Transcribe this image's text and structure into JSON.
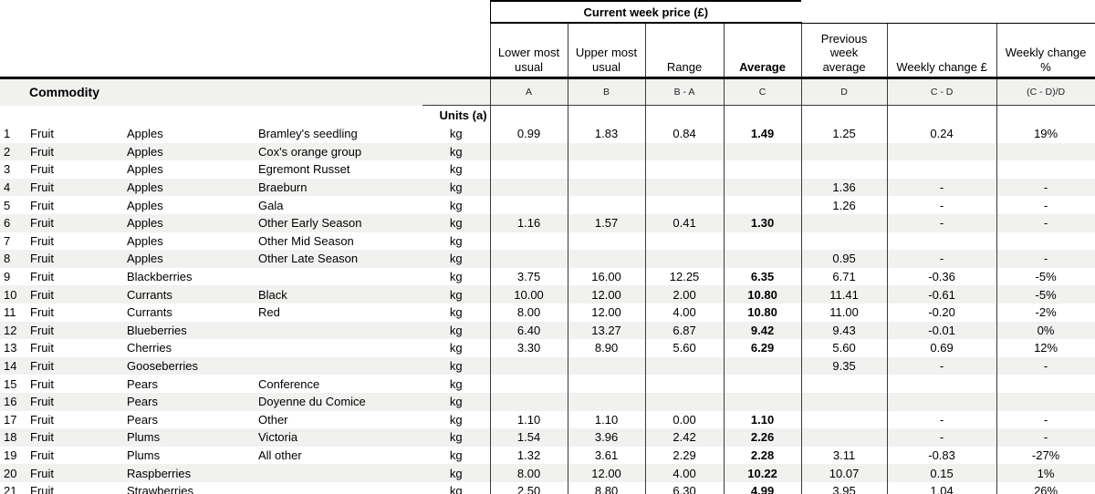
{
  "header": {
    "group_title": "Current week price (£)",
    "columns": [
      "Lower most\nusual",
      "Upper most\nusual",
      "Range",
      "Average",
      "Previous\nweek\naverage",
      "Weekly change £",
      "Weekly change\n%"
    ],
    "formulas": [
      "A",
      "B",
      "B - A",
      "C",
      "D",
      "C - D",
      "(C - D)/D"
    ],
    "commodity_label": "Commodity",
    "units_label": "Units (a)"
  },
  "table": {
    "rows": [
      {
        "num": 1,
        "category": "Fruit",
        "commodity": "Apples",
        "variety": "Bramley's seedling",
        "unit": "kg",
        "values": [
          "0.99",
          "1.83",
          "0.84",
          "1.49",
          "1.25",
          "0.24",
          "19%"
        ]
      },
      {
        "num": 2,
        "category": "Fruit",
        "commodity": "Apples",
        "variety": "Cox's orange group",
        "unit": "kg",
        "values": [
          "",
          "",
          "",
          "",
          "",
          "",
          ""
        ]
      },
      {
        "num": 3,
        "category": "Fruit",
        "commodity": "Apples",
        "variety": "Egremont Russet",
        "unit": "kg",
        "values": [
          "",
          "",
          "",
          "",
          "",
          "",
          ""
        ]
      },
      {
        "num": 4,
        "category": "Fruit",
        "commodity": "Apples",
        "variety": "Braeburn",
        "unit": "kg",
        "values": [
          "",
          "",
          "",
          "",
          "1.36",
          "-",
          "-"
        ]
      },
      {
        "num": 5,
        "category": "Fruit",
        "commodity": "Apples",
        "variety": "Gala",
        "unit": "kg",
        "values": [
          "",
          "",
          "",
          "",
          "1.26",
          "-",
          "-"
        ]
      },
      {
        "num": 6,
        "category": "Fruit",
        "commodity": "Apples",
        "variety": "Other Early Season",
        "unit": "kg",
        "values": [
          "1.16",
          "1.57",
          "0.41",
          "1.30",
          "",
          "-",
          "-"
        ]
      },
      {
        "num": 7,
        "category": "Fruit",
        "commodity": "Apples",
        "variety": "Other Mid Season",
        "unit": "kg",
        "values": [
          "",
          "",
          "",
          "",
          "",
          "",
          ""
        ]
      },
      {
        "num": 8,
        "category": "Fruit",
        "commodity": "Apples",
        "variety": "Other Late Season",
        "unit": "kg",
        "values": [
          "",
          "",
          "",
          "",
          "0.95",
          "-",
          "-"
        ]
      },
      {
        "num": 9,
        "category": "Fruit",
        "commodity": "Blackberries",
        "variety": "",
        "unit": "kg",
        "values": [
          "3.75",
          "16.00",
          "12.25",
          "6.35",
          "6.71",
          "-0.36",
          "-5%"
        ]
      },
      {
        "num": 10,
        "category": "Fruit",
        "commodity": "Currants",
        "variety": "Black",
        "unit": "kg",
        "values": [
          "10.00",
          "12.00",
          "2.00",
          "10.80",
          "11.41",
          "-0.61",
          "-5%"
        ]
      },
      {
        "num": 11,
        "category": "Fruit",
        "commodity": "Currants",
        "variety": "Red",
        "unit": "kg",
        "values": [
          "8.00",
          "12.00",
          "4.00",
          "10.80",
          "11.00",
          "-0.20",
          "-2%"
        ]
      },
      {
        "num": 12,
        "category": "Fruit",
        "commodity": "Blueberries",
        "variety": "",
        "unit": "kg",
        "values": [
          "6.40",
          "13.27",
          "6.87",
          "9.42",
          "9.43",
          "-0.01",
          "0%"
        ]
      },
      {
        "num": 13,
        "category": "Fruit",
        "commodity": "Cherries",
        "variety": "",
        "unit": "kg",
        "values": [
          "3.30",
          "8.90",
          "5.60",
          "6.29",
          "5.60",
          "0.69",
          "12%"
        ]
      },
      {
        "num": 14,
        "category": "Fruit",
        "commodity": "Gooseberries",
        "variety": "",
        "unit": "kg",
        "values": [
          "",
          "",
          "",
          "",
          "9.35",
          "-",
          "-"
        ]
      },
      {
        "num": 15,
        "category": "Fruit",
        "commodity": "Pears",
        "variety": "Conference",
        "unit": "kg",
        "values": [
          "",
          "",
          "",
          "",
          "",
          "",
          ""
        ]
      },
      {
        "num": 16,
        "category": "Fruit",
        "commodity": "Pears",
        "variety": "Doyenne du Comice",
        "unit": "kg",
        "values": [
          "",
          "",
          "",
          "",
          "",
          "",
          ""
        ]
      },
      {
        "num": 17,
        "category": "Fruit",
        "commodity": "Pears",
        "variety": "Other",
        "unit": "kg",
        "values": [
          "1.10",
          "1.10",
          "0.00",
          "1.10",
          "",
          "-",
          "-"
        ]
      },
      {
        "num": 18,
        "category": "Fruit",
        "commodity": "Plums",
        "variety": "Victoria",
        "unit": "kg",
        "values": [
          "1.54",
          "3.96",
          "2.42",
          "2.26",
          "",
          "-",
          "-"
        ]
      },
      {
        "num": 19,
        "category": "Fruit",
        "commodity": "Plums",
        "variety": "All other",
        "unit": "kg",
        "values": [
          "1.32",
          "3.61",
          "2.29",
          "2.28",
          "3.11",
          "-0.83",
          "-27%"
        ]
      },
      {
        "num": 20,
        "category": "Fruit",
        "commodity": "Raspberries",
        "variety": "",
        "unit": "kg",
        "values": [
          "8.00",
          "12.00",
          "4.00",
          "10.22",
          "10.07",
          "0.15",
          "1%"
        ]
      },
      {
        "num": 21,
        "category": "Fruit",
        "commodity": "Strawberries",
        "variety": "",
        "unit": "kg",
        "values": [
          "2.50",
          "8.80",
          "6.30",
          "4.99",
          "3.95",
          "1.04",
          "26%"
        ]
      }
    ]
  },
  "colors": {
    "stripe": "#f1f1f0",
    "border": "#000000",
    "border_thin": "#3a3a3a"
  }
}
